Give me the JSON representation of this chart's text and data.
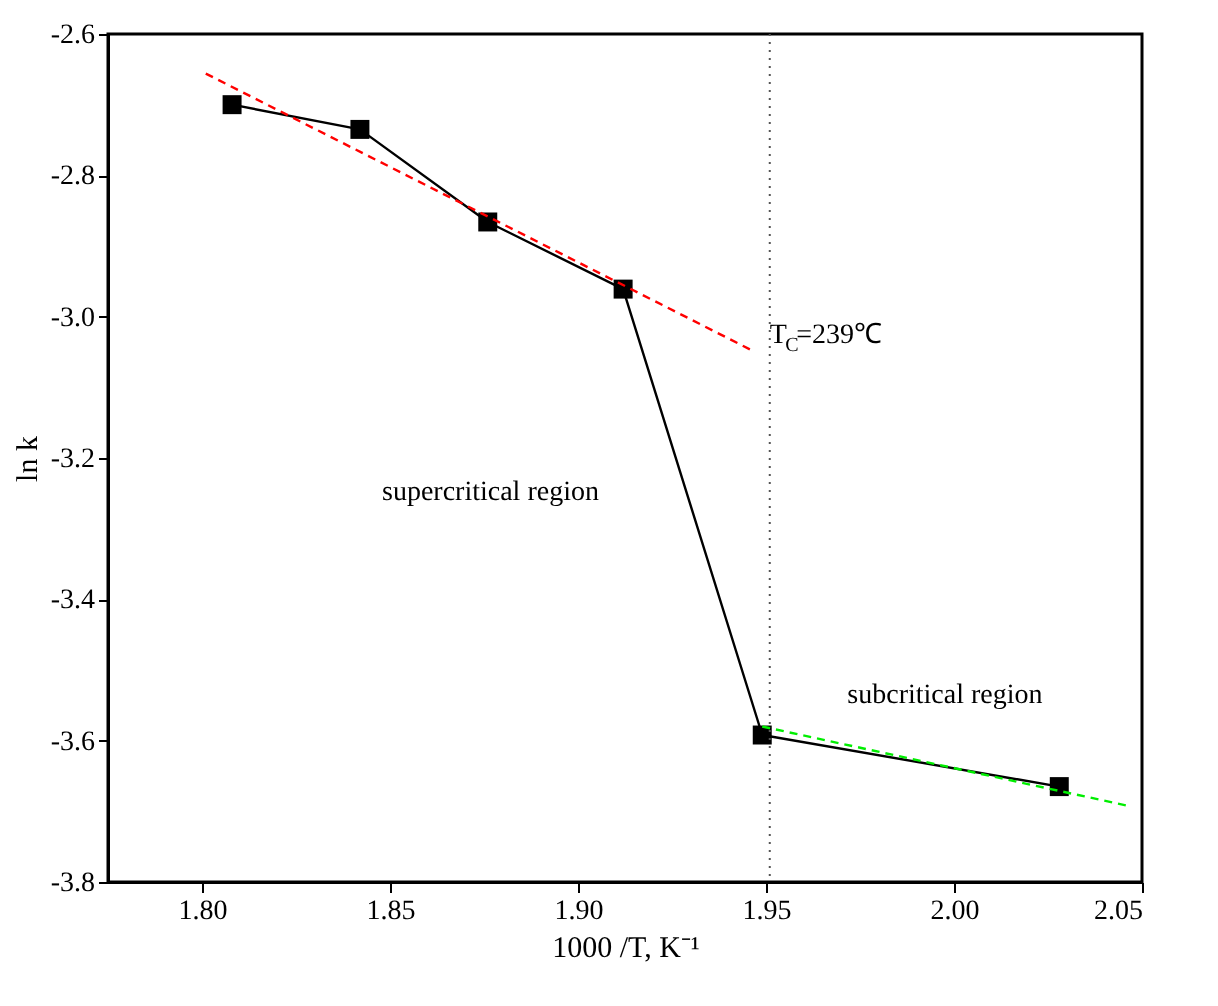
{
  "chart_data": {
    "type": "line",
    "xlabel": "1000 /T, K⁻¹",
    "ylabel": "ln k",
    "xlim": [
      1.775,
      2.05
    ],
    "ylim": [
      -3.8,
      -2.6
    ],
    "xticks": [
      {
        "value": 1.8,
        "label": "1.80"
      },
      1.85,
      {
        "value": 1.9,
        "label": "1.90"
      },
      1.95,
      {
        "value": 2.0,
        "label": "2.00"
      },
      2.05
    ],
    "yticks": [
      -3.8,
      -3.6,
      -3.4,
      -3.2,
      {
        "value": -3.0,
        "label": "-3.0"
      },
      -2.8,
      -2.6
    ],
    "series": [
      {
        "color": "#000000",
        "marker": "square",
        "line_style": "solid",
        "x": [
          1.808,
          1.842,
          1.876,
          1.912,
          1.949,
          2.028
        ],
        "values": [
          -2.7,
          -2.735,
          -2.866,
          -2.961,
          -3.592,
          -3.665
        ]
      },
      {
        "color": "#ff0000",
        "marker": "none",
        "line_style": "dashed",
        "x": [
          1.801,
          1.946
        ],
        "values": [
          -2.656,
          -3.047
        ]
      },
      {
        "color": "#00ee00",
        "marker": "none",
        "line_style": "dashed",
        "x": [
          1.949,
          2.047
        ],
        "values": [
          -3.58,
          -3.693
        ]
      }
    ],
    "ref_lines": [
      {
        "axis": "x",
        "value": 1.951,
        "color": "#555555",
        "line_style": "dotted"
      }
    ],
    "annotations": [
      "T$_{C}$=239℃",
      "supercritical region",
      "subcritical region"
    ],
    "grid": false
  }
}
